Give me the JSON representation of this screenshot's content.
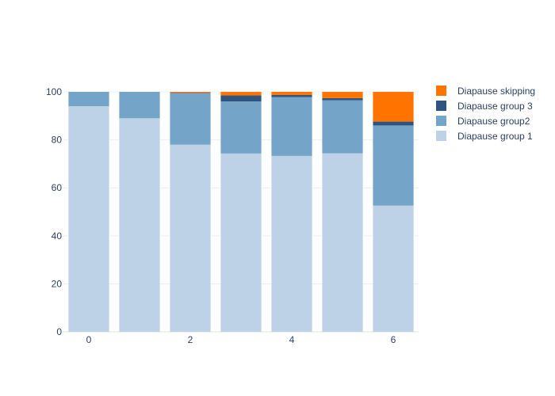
{
  "chart_data": {
    "type": "bar",
    "stacked": true,
    "x": [
      0,
      1,
      2,
      3,
      4,
      5,
      6
    ],
    "series": [
      {
        "name": "Diapause group 1",
        "color": "#bdd1e7",
        "values": [
          94,
          89,
          78,
          74.3,
          73.3,
          74.4,
          52.6
        ]
      },
      {
        "name": "Diapause group2",
        "color": "#74a5c8",
        "values": [
          6,
          11,
          21.4,
          21.7,
          24.5,
          22.1,
          33.4
        ]
      },
      {
        "name": "Diapause group 3",
        "color": "#2e5581",
        "values": [
          0,
          0,
          0.2,
          2.5,
          0.9,
          0.9,
          1.6
        ]
      },
      {
        "name": "Diapause skipping",
        "color": "#ff7300",
        "values": [
          0,
          0,
          0.4,
          1.5,
          1.3,
          2.6,
          12.4
        ]
      }
    ],
    "x_ticks": [
      0,
      2,
      4,
      6
    ],
    "y_ticks": [
      0,
      20,
      40,
      60,
      80,
      100
    ],
    "ylim": [
      0,
      100
    ],
    "xlim": [
      -0.5,
      6.5
    ],
    "grid": true,
    "legend_position": "top-right",
    "legend_order": [
      "Diapause skipping",
      "Diapause group 3",
      "Diapause group2",
      "Diapause group 1"
    ]
  }
}
